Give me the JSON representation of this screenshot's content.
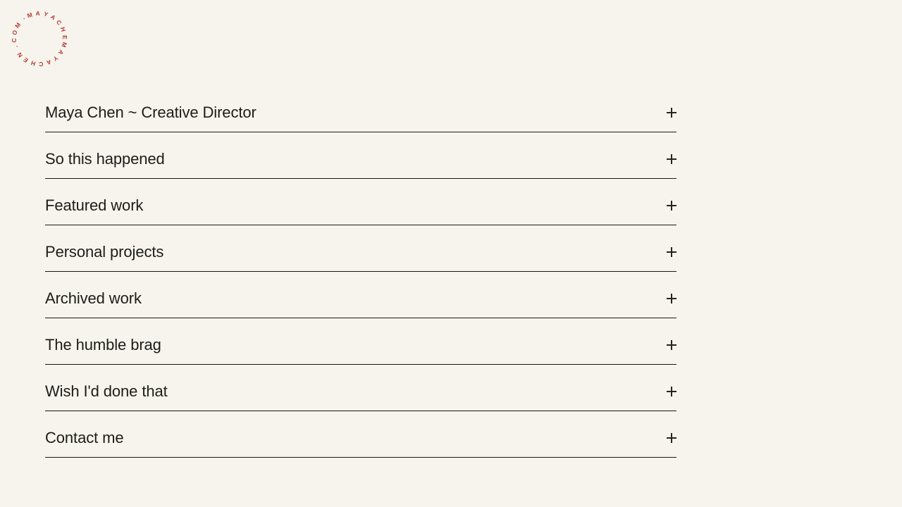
{
  "page": {
    "background_color": "#f6f4ed",
    "text_color": "#1d1c19",
    "rule_color": "#191813"
  },
  "logo": {
    "circular_text": "·MAYACHEMAYACHEN.COM",
    "color": "#b23a30",
    "icon": "circular-wordmark"
  },
  "accordion": {
    "expand_icon": "plus-icon",
    "items": [
      {
        "label": "Maya Chen ~ Creative Director"
      },
      {
        "label": "So this happened"
      },
      {
        "label": "Featured work"
      },
      {
        "label": "Personal projects"
      },
      {
        "label": "Archived work"
      },
      {
        "label": "The humble brag"
      },
      {
        "label": "Wish I'd done that"
      },
      {
        "label": "Contact me"
      }
    ]
  }
}
